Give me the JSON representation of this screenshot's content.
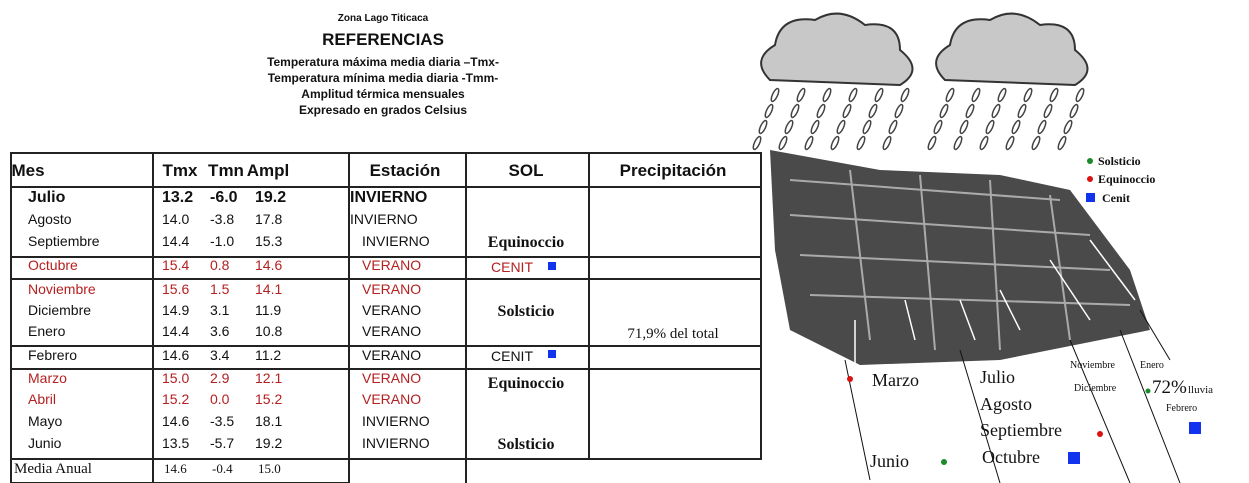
{
  "header": {
    "zone": "Zona Lago Titicaca",
    "title": "REFERENCIAS",
    "lines": [
      "Temperatura máxima media diaria –Tmx-",
      "Temperatura mínima media diaria -Tmm-",
      "Amplitud térmica mensuales",
      "Expresado en grados Celsius"
    ]
  },
  "table": {
    "columns": [
      "Mes",
      "Tmx",
      "Tmn",
      "Ampl",
      "Estación",
      "SOL",
      "Precipitación"
    ],
    "rows": [
      [
        "Julio",
        "13.2",
        "-6.0",
        "19.2",
        "INVIERNO"
      ],
      [
        "Agosto",
        "14.0",
        "-3.8",
        "17.8",
        "INVIERNO"
      ],
      [
        "Septiembre",
        "14.4",
        "-1.0",
        "15.3",
        "INVIERNO"
      ],
      [
        "Octubre",
        "15.4",
        "0.8",
        "14.6",
        "VERANO"
      ],
      [
        "Noviembre",
        "15.6",
        "1.5",
        "14.1",
        "VERANO"
      ],
      [
        "Diciembre",
        "14.9",
        "3.1",
        "11.9",
        "VERANO"
      ],
      [
        "Enero",
        "14.4",
        "3.6",
        "10.8",
        "VERANO"
      ],
      [
        "Febrero",
        "14.6",
        "3.4",
        "11.2",
        "VERANO"
      ],
      [
        "Marzo",
        "15.0",
        "2.9",
        "12.1",
        "VERANO"
      ],
      [
        "Abril",
        "15.2",
        "0.0",
        "15.2",
        "VERANO"
      ],
      [
        "Mayo",
        "14.6",
        "-3.5",
        "18.1",
        "INVIERNO"
      ],
      [
        "Junio",
        "13.5",
        "-5.7",
        "19.2",
        "INVIERNO"
      ]
    ],
    "sol": [
      "Equinoccio",
      "CENIT",
      "Solsticio",
      "CENIT",
      "Equinoccio",
      "Solsticio"
    ],
    "precipitation": "71,9% del total",
    "footer": [
      "Media Anual",
      "14.6",
      "-0.4",
      "15.0"
    ]
  },
  "illustration": {
    "legend": [
      "Solsticio",
      "Equinoccio",
      "Cenit"
    ],
    "labels": [
      "Marzo",
      "Julio",
      "Agosto",
      "Septiembre",
      "Octubre",
      "Junio",
      "Noviembre",
      "Enero",
      "Diciembre",
      "72%",
      "lluvia",
      "Febrero"
    ]
  }
}
